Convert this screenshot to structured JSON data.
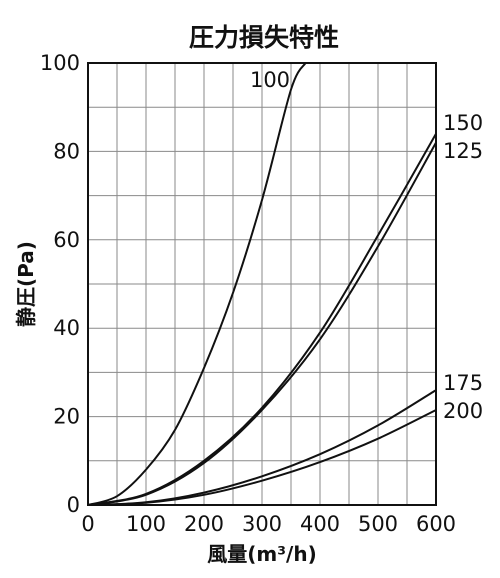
{
  "chart_data": {
    "type": "line",
    "title": "圧力損失特性",
    "xlabel": "風量(m³/h)",
    "ylabel": "静圧(Pa)",
    "xlim": [
      0,
      600
    ],
    "ylim": [
      0,
      100
    ],
    "x_ticks": [
      "0",
      "100",
      "200",
      "300",
      "400",
      "500",
      "600"
    ],
    "y_ticks": [
      "0",
      "20",
      "40",
      "60",
      "80",
      "100"
    ],
    "grid": true,
    "series": [
      {
        "name": "100",
        "x": [
          0,
          50,
          100,
          150,
          200,
          250,
          300,
          350,
          375
        ],
        "y": [
          0,
          2,
          8,
          17,
          31,
          48,
          69,
          94,
          100
        ]
      },
      {
        "name": "150",
        "x": [
          0,
          100,
          200,
          300,
          400,
          500,
          600
        ],
        "y": [
          0,
          2.5,
          10,
          22,
          39,
          61,
          84
        ]
      },
      {
        "name": "125",
        "x": [
          0,
          100,
          200,
          300,
          400,
          500,
          600
        ],
        "y": [
          0,
          2.3,
          9.5,
          21.5,
          37.5,
          58.5,
          82
        ]
      },
      {
        "name": "175",
        "x": [
          0,
          100,
          200,
          300,
          400,
          500,
          600
        ],
        "y": [
          0,
          0.6,
          2.8,
          6.5,
          11.5,
          18,
          26
        ]
      },
      {
        "name": "200",
        "x": [
          0,
          100,
          200,
          300,
          400,
          500,
          600
        ],
        "y": [
          0,
          0.5,
          2.3,
          5.5,
          9.7,
          15,
          21.5
        ]
      }
    ]
  }
}
